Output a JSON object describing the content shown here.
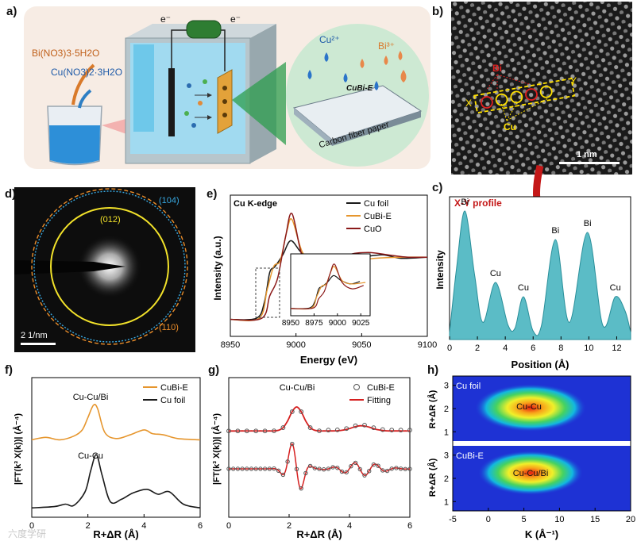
{
  "panels": {
    "a": {
      "label": "a)",
      "bi_precursor": "Bi(NO3)3·5H2O",
      "cu_precursor": "Cu(NO3)2·3H2O",
      "electron_left": "e⁻",
      "electron_right": "e⁻",
      "cu_ion": "Cu²⁺",
      "bi_ion": "Bi³⁺",
      "sample": "CuBi-E",
      "substrate": "Carbon fiber paper"
    },
    "b": {
      "label": "b)",
      "bi_tag": "Bi",
      "cu_tag": "Cu",
      "x_tag": "X",
      "y_tag": "Y",
      "scale": "1 nm"
    },
    "c": {
      "label": "c)",
      "title": "X-Y profile",
      "peak_labels": [
        "Bi",
        "Cu",
        "Cu",
        "Bi",
        "Bi",
        "Cu"
      ]
    },
    "d": {
      "label": "d)",
      "ring_104": "(104)",
      "ring_012": "(012)",
      "ring_110": "(110)",
      "scale": "2 1/nm"
    },
    "e": {
      "label": "e)",
      "edge": "Cu K-edge",
      "legend": [
        "Cu foil",
        "CuBi-E",
        "CuO"
      ]
    },
    "f": {
      "label": "f)",
      "legend": [
        "CuBi-E",
        "Cu foil"
      ],
      "ann_top": "Cu-Cu/Bi",
      "ann_bottom": "Cu-Cu"
    },
    "g": {
      "label": "g)",
      "legend": [
        "CuBi-E",
        "Fitting"
      ],
      "ann": "Cu-Cu/Bi"
    },
    "h": {
      "label": "h)",
      "top_title": "Cu foil",
      "top_ann": "Cu-Cu",
      "bottom_title": "CuBi-E",
      "bottom_ann": "Cu-Cu/Bi"
    },
    "watermark": "六度学研"
  },
  "chart_data": [
    {
      "id": "c",
      "type": "area",
      "title": "X-Y profile",
      "xlabel": "Position (Å)",
      "ylabel": "Intensity",
      "xlim": [
        0,
        13
      ],
      "xticks": [
        0,
        2,
        4,
        6,
        8,
        10,
        12
      ],
      "x": [
        0,
        0.5,
        1.1,
        1.8,
        2.4,
        3.3,
        4.2,
        4.7,
        5.3,
        6.0,
        6.6,
        7.6,
        8.6,
        9.9,
        11.0,
        11.9,
        12.6,
        13.0
      ],
      "y": [
        0.05,
        0.5,
        0.9,
        0.45,
        0.12,
        0.4,
        0.1,
        0.08,
        0.3,
        0.06,
        0.1,
        0.7,
        0.12,
        0.75,
        0.1,
        0.3,
        0.2,
        0.05
      ]
    },
    {
      "id": "e",
      "type": "line",
      "title": "Cu K-edge",
      "xlabel": "Energy (eV)",
      "ylabel": "Intensity (a.u.)",
      "xlim": [
        8950,
        9100
      ],
      "xticks": [
        8950,
        9000,
        9050,
        9100
      ],
      "inset_xticks": [
        8950,
        8975,
        9000,
        9025
      ],
      "series": [
        {
          "name": "Cu foil",
          "color": "#1a1a1a",
          "x": [
            8950,
            8970,
            8976,
            8980,
            8984,
            8990,
            8996,
            9004,
            9014,
            9024,
            9036,
            9050,
            9066,
            9080,
            9100
          ],
          "y": [
            0.05,
            0.06,
            0.2,
            0.45,
            0.5,
            0.6,
            0.72,
            0.62,
            0.55,
            0.6,
            0.56,
            0.58,
            0.6,
            0.57,
            0.58
          ]
        },
        {
          "name": "CuBi-E",
          "color": "#e6962e",
          "x": [
            8950,
            8972,
            8978,
            8983,
            8988,
            8993,
            8997,
            9005,
            9015,
            9030,
            9045,
            9060,
            9080,
            9100
          ],
          "y": [
            0.05,
            0.06,
            0.3,
            0.5,
            0.55,
            0.8,
            0.9,
            0.62,
            0.55,
            0.58,
            0.55,
            0.57,
            0.58,
            0.58
          ]
        },
        {
          "name": "CuO",
          "color": "#8b1a1a",
          "x": [
            8950,
            8974,
            8980,
            8986,
            8992,
            8997,
            9005,
            9016,
            9028,
            9040,
            9055,
            9070,
            9085,
            9100
          ],
          "y": [
            0.05,
            0.06,
            0.25,
            0.4,
            0.75,
            0.95,
            0.58,
            0.45,
            0.52,
            0.6,
            0.62,
            0.6,
            0.58,
            0.58
          ]
        }
      ]
    },
    {
      "id": "f",
      "type": "line",
      "xlabel": "R+ΔR (Å)",
      "ylabel": "|FT(k³ X(k))| (Å⁻⁴)",
      "xlim": [
        0,
        6
      ],
      "xticks": [
        0,
        2,
        4,
        6
      ],
      "series": [
        {
          "name": "CuBi-E",
          "color": "#e6962e",
          "x": [
            0,
            0.5,
            1.0,
            1.5,
            1.8,
            2.0,
            2.2,
            2.35,
            2.6,
            3.0,
            3.5,
            4.0,
            4.3,
            4.7,
            5.2,
            6.0
          ],
          "y": [
            0.6,
            0.62,
            0.6,
            0.63,
            0.68,
            0.78,
            0.88,
            0.85,
            0.66,
            0.61,
            0.64,
            0.68,
            0.65,
            0.64,
            0.61,
            0.6
          ]
        },
        {
          "name": "Cu foil",
          "color": "#1a1a1a",
          "x": [
            0,
            0.8,
            1.2,
            1.5,
            1.9,
            2.1,
            2.3,
            2.5,
            2.8,
            3.2,
            3.6,
            4.1,
            4.5,
            4.9,
            5.4,
            6.0
          ],
          "y": [
            0.05,
            0.06,
            0.08,
            0.07,
            0.18,
            0.35,
            0.48,
            0.32,
            0.1,
            0.12,
            0.17,
            0.2,
            0.16,
            0.18,
            0.08,
            0.05
          ]
        }
      ]
    },
    {
      "id": "g",
      "type": "line",
      "xlabel": "R+ΔR (Å)",
      "ylabel": "|FT(k³ X(k))| (Å⁻⁴)",
      "xlim": [
        0,
        6
      ],
      "xticks": [
        0,
        2,
        4,
        6
      ],
      "series": [
        {
          "name": "CuBi-E",
          "color": "#555555",
          "marker": "circle"
        },
        {
          "name": "Fitting",
          "color": "#d62020"
        }
      ]
    },
    {
      "id": "h",
      "type": "heatmap",
      "xlabel": "K (Å⁻¹)",
      "ylabel": "R+ΔR (Å)",
      "xlim": [
        -5,
        20
      ],
      "xticks": [
        -5,
        0,
        5,
        10,
        15,
        20
      ],
      "yticks": [
        1,
        2,
        3
      ]
    }
  ]
}
